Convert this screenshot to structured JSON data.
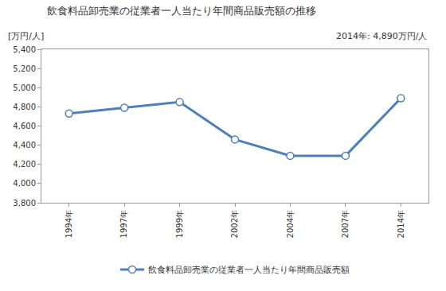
{
  "chart_data": {
    "type": "line",
    "title": "飲食料品卸売業の従業者一人当たり年間商品販売額の推移",
    "y_label": "[万円/人]",
    "annotations": [
      "2014年: 4,890万円/人"
    ],
    "categories": [
      "1994年",
      "1997年",
      "1999年",
      "2002年",
      "2004年",
      "2007年",
      "2014年"
    ],
    "series": [
      {
        "name": "飲食料品卸売業の従業者一人当たり年間商品販売額",
        "color": "#4f7fb8",
        "values": [
          4730,
          4790,
          4850,
          4460,
          4290,
          4290,
          4890
        ]
      }
    ],
    "ylim": [
      3800,
      5400
    ],
    "yticks": [
      {
        "value": 3800,
        "label": "3,800"
      },
      {
        "value": 4000,
        "label": "4,000"
      },
      {
        "value": 4200,
        "label": "4,200"
      },
      {
        "value": 4400,
        "label": "4,400"
      },
      {
        "value": 4600,
        "label": "4,600"
      },
      {
        "value": 4800,
        "label": "4,800"
      },
      {
        "value": 5000,
        "label": "5,000"
      },
      {
        "value": 5200,
        "label": "5,200"
      },
      {
        "value": 5400,
        "label": "5,400"
      }
    ],
    "grid": false,
    "legend": "bottom",
    "marker": "circle"
  }
}
